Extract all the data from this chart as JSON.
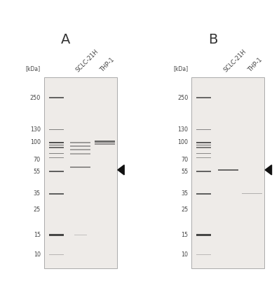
{
  "panel_A_label": "A",
  "panel_B_label": "B",
  "kda_label": "[kDa]",
  "lane_labels": [
    "SCLC-21H",
    "THP-1"
  ],
  "bg_color": "#ffffff",
  "gel_bg": "#eeebe8",
  "gel_edge": "#aaaaaa",
  "mw_label_color": "#444444",
  "band_dark": "#2a2a2a",
  "arrow_color": "#111111",
  "log_min": 0.845,
  "log_max": 2.556,
  "panel_A": {
    "ladder_bands": [
      {
        "mw": 250,
        "alpha": 0.7,
        "thick": 1.5
      },
      {
        "mw": 130,
        "alpha": 0.55,
        "thick": 1.2
      },
      {
        "mw": 100,
        "alpha": 0.8,
        "thick": 1.8
      },
      {
        "mw": 95,
        "alpha": 0.7,
        "thick": 1.4
      },
      {
        "mw": 90,
        "alpha": 0.65,
        "thick": 1.3
      },
      {
        "mw": 80,
        "alpha": 0.55,
        "thick": 1.2
      },
      {
        "mw": 73,
        "alpha": 0.5,
        "thick": 1.2
      },
      {
        "mw": 55,
        "alpha": 0.72,
        "thick": 1.5
      },
      {
        "mw": 35,
        "alpha": 0.72,
        "thick": 1.6
      },
      {
        "mw": 15,
        "alpha": 0.85,
        "thick": 2.0
      },
      {
        "mw": 10,
        "alpha": 0.28,
        "thick": 1.0
      }
    ],
    "lane1_bands": [
      {
        "mw": 100,
        "alpha": 0.42,
        "thick": 1.4
      },
      {
        "mw": 93,
        "alpha": 0.4,
        "thick": 1.3
      },
      {
        "mw": 86,
        "alpha": 0.38,
        "thick": 1.2
      },
      {
        "mw": 79,
        "alpha": 0.35,
        "thick": 1.1
      },
      {
        "mw": 60,
        "alpha": 0.48,
        "thick": 1.3
      }
    ],
    "lane2_bands": [
      {
        "mw": 102,
        "alpha": 0.65,
        "thick": 1.8
      },
      {
        "mw": 97,
        "alpha": 0.48,
        "thick": 1.4
      }
    ],
    "arrow_mw": 57,
    "lane1_note_mw": 15,
    "lane1_note_alpha": 0.22
  },
  "panel_B": {
    "ladder_bands": [
      {
        "mw": 250,
        "alpha": 0.68,
        "thick": 1.5
      },
      {
        "mw": 130,
        "alpha": 0.52,
        "thick": 1.2
      },
      {
        "mw": 100,
        "alpha": 0.75,
        "thick": 1.8
      },
      {
        "mw": 95,
        "alpha": 0.65,
        "thick": 1.4
      },
      {
        "mw": 90,
        "alpha": 0.58,
        "thick": 1.3
      },
      {
        "mw": 80,
        "alpha": 0.5,
        "thick": 1.2
      },
      {
        "mw": 73,
        "alpha": 0.45,
        "thick": 1.2
      },
      {
        "mw": 55,
        "alpha": 0.7,
        "thick": 1.5
      },
      {
        "mw": 35,
        "alpha": 0.72,
        "thick": 1.6
      },
      {
        "mw": 15,
        "alpha": 0.85,
        "thick": 2.0
      },
      {
        "mw": 10,
        "alpha": 0.25,
        "thick": 1.0
      }
    ],
    "lane1_bands": [
      {
        "mw": 57,
        "alpha": 0.68,
        "thick": 1.6
      }
    ],
    "lane2_bands": [
      {
        "mw": 35,
        "alpha": 0.3,
        "thick": 1.0
      }
    ],
    "arrow_mw": 57
  },
  "mw_ticks": [
    250,
    130,
    100,
    70,
    55,
    35,
    25,
    15,
    10
  ]
}
